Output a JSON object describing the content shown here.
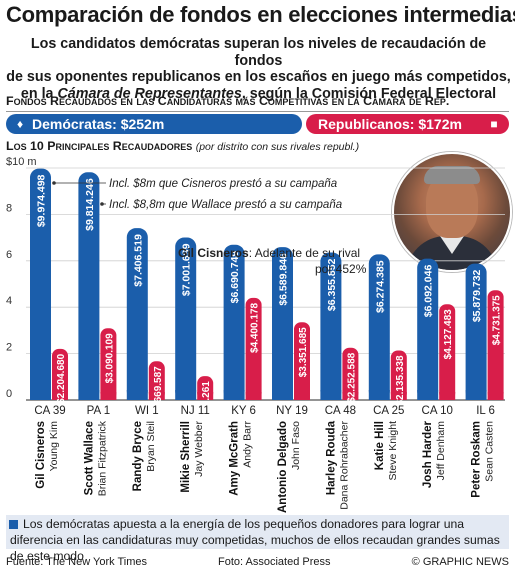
{
  "header": {
    "title": "Comparación de fondos en elecciones intermedias",
    "subtitle_line1": "Los candidatos demócratas superan los niveles de recaudación de fondos",
    "subtitle_line2": "de sus oponentes republicanos en los escaños en juego más competidos,",
    "subtitle_line3_pre": "en la ",
    "subtitle_line3_em": "Cámara de Representantes",
    "subtitle_line3_post": ", según la Comisión Federal Electoral"
  },
  "totals": {
    "section_label": "Fondos Recaudados en las Candidaturas más Competitivas en la Cámara de  Rep.",
    "democrats_label": "Demócratas: $252m",
    "republicans_label": "Republicanos: $172m",
    "democrats_value_m": 252,
    "republicans_value_m": 172,
    "democrats_icon": "donkey-icon",
    "republicans_icon": "elephant-icon"
  },
  "chart_heading": "Los 10 Principales Recaudadores",
  "chart_note": "(por distrito con sus rivales republ.)",
  "highlight": {
    "name": "Gil Cisneros",
    "text_line1": ": Adelante de su rival",
    "text_line2": "por 452%"
  },
  "annotations": {
    "cisneros_loan": "Incl. $8m que Cisneros prestó a su campaña",
    "wallace_loan": "Incl. $8,8m que Wallace prestó a su campaña"
  },
  "chart_data": {
    "type": "bar",
    "title": "Los 10 Principales Recaudadores",
    "ylabel": "",
    "ylim": [
      0,
      10
    ],
    "yticks": [
      0,
      2,
      4,
      6,
      8,
      10
    ],
    "ytick_labels": [
      "0",
      "2",
      "4",
      "6",
      "8",
      "$10 m"
    ],
    "categories": [
      "CA 39",
      "PA 1",
      "WI 1",
      "NJ 11",
      "KY 6",
      "NY 19",
      "CA 48",
      "CA 25",
      "CA 10",
      "IL 6"
    ],
    "democrats": [
      "Gil Cisneros",
      "Scott Wallace",
      "Randy Bryce",
      "Mikie Sherrill",
      "Amy McGrath",
      "Antonio Delgado",
      "Harley Rouda",
      "Katie Hill",
      "Josh Harder",
      "Peter Roskam"
    ],
    "republicans": [
      "Young Kim",
      "Brian Fitzpatrick",
      "Bryan Steil",
      "Jay Webber",
      "Andy Barr",
      "John Faso",
      "Dana Rohrabacher",
      "Steve Knight",
      "Jeff Denham",
      "Sean Casten"
    ],
    "series": [
      {
        "name": "Demócratas",
        "color": "#1b5eab",
        "values": [
          9.974498,
          9.814246,
          7.406519,
          7.001699,
          6.690749,
          6.589846,
          6.355852,
          6.274385,
          6.092046,
          5.879732
        ],
        "labels": [
          "$9.974.498",
          "$9.814.246",
          "$7.406.519",
          "$7.001.699",
          "$6.690.749",
          "$6.589.846",
          "$6.355.852",
          "$6.274.385",
          "$6.092.046",
          "$5.879.732"
        ]
      },
      {
        "name": "Republicanos",
        "color": "#d81e4a",
        "values": [
          2.20468,
          3.090109,
          1.669587,
          1.028261,
          4.400178,
          3.351685,
          2.252588,
          2.135338,
          4.127483,
          4.731375
        ],
        "labels": [
          "$2.204.680",
          "$3.090.109",
          "$1.669.587",
          "$1.028.261",
          "$4.400.178",
          "$3.351.685",
          "$2.252.588",
          "$2.135.338",
          "$4.127.483",
          "$4.731.375"
        ]
      }
    ]
  },
  "footer": {
    "note": "Los demócratas apuesta a la energía de los pequeños donadores para lograr una diferencia en las candidaturas muy competidas, muchos de ellos recaudan grandes sumas de este modo",
    "source": "Fuente: The New York Times",
    "photo": "Foto: Associated Press",
    "credit": "© GRAPHIC NEWS"
  }
}
